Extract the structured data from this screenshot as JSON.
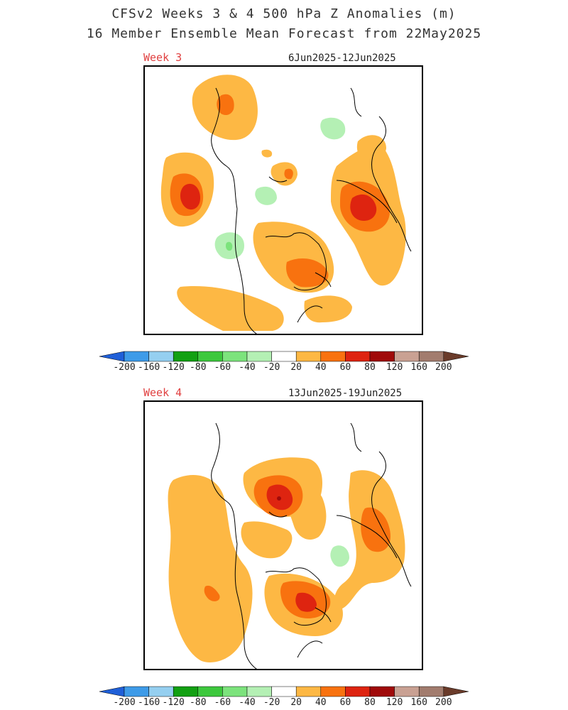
{
  "title": {
    "line1": "CFSv2 Weeks 3 & 4 500 hPa Z Anomalies (m)",
    "line2": "16 Member Ensemble Mean Forecast from 22May2025"
  },
  "panels": [
    {
      "label": "Week 3",
      "dates": "6Jun2025-12Jun2025"
    },
    {
      "label": "Week 4",
      "dates": "13Jun2025-19Jun2025"
    }
  ],
  "colorbar": {
    "labels": [
      "-200",
      "-160",
      "-120",
      "-80",
      "-60",
      "-40",
      "-20",
      "20",
      "40",
      "60",
      "80",
      "120",
      "160",
      "200"
    ],
    "colors": [
      "#1f5fd8",
      "#3e9be8",
      "#95cff0",
      "#12a012",
      "#3dc83d",
      "#7ce37c",
      "#b4f0b4",
      "#ffffff",
      "#fdb844",
      "#f8720f",
      "#de2410",
      "#a00a0a",
      "#c9a193",
      "#a27c6e",
      "#6a3b2a"
    ]
  },
  "map_colors": {
    "pos20": "#fdb844",
    "pos40": "#f8720f",
    "pos60": "#de2410",
    "neg20": "#b4f0b4",
    "neg40": "#7ce37c"
  }
}
